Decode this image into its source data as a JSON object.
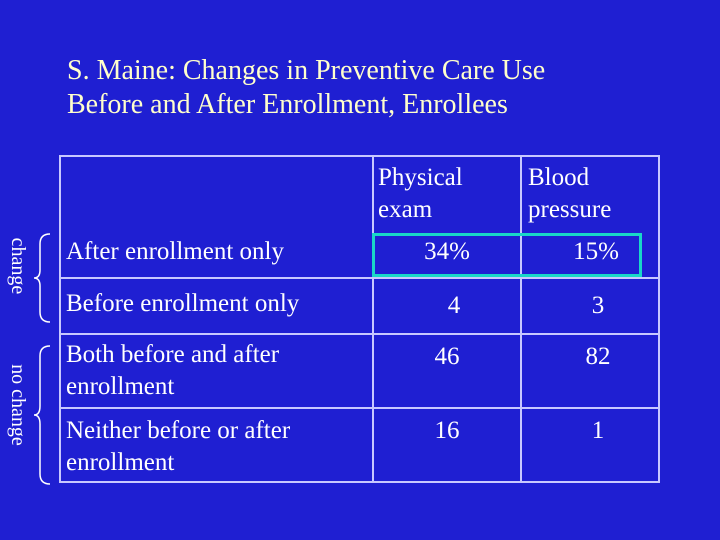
{
  "title": {
    "line1": "S. Maine: Changes in Preventive Care Use",
    "line2": "Before and After Enrollment, Enrollees"
  },
  "side_labels": {
    "change": "change",
    "no_change": "no change"
  },
  "table": {
    "headers": {
      "physical": [
        "Physical",
        "exam"
      ],
      "blood": [
        "Blood",
        "pressure"
      ]
    },
    "rows": [
      {
        "label": [
          "After enrollment only"
        ],
        "physical": "34%",
        "blood": "15%"
      },
      {
        "label": [
          "Before enrollment only"
        ],
        "physical": "4",
        "blood": "3"
      },
      {
        "label": [
          "Both before and after",
          "enrollment"
        ],
        "physical": "46",
        "blood": "82"
      },
      {
        "label": [
          "Neither before or after",
          "enrollment"
        ],
        "physical": "16",
        "blood": "1"
      }
    ]
  },
  "colors": {
    "background": "#1f1fd2",
    "title": "#ffffcc",
    "highlight": "#19d7c8"
  }
}
